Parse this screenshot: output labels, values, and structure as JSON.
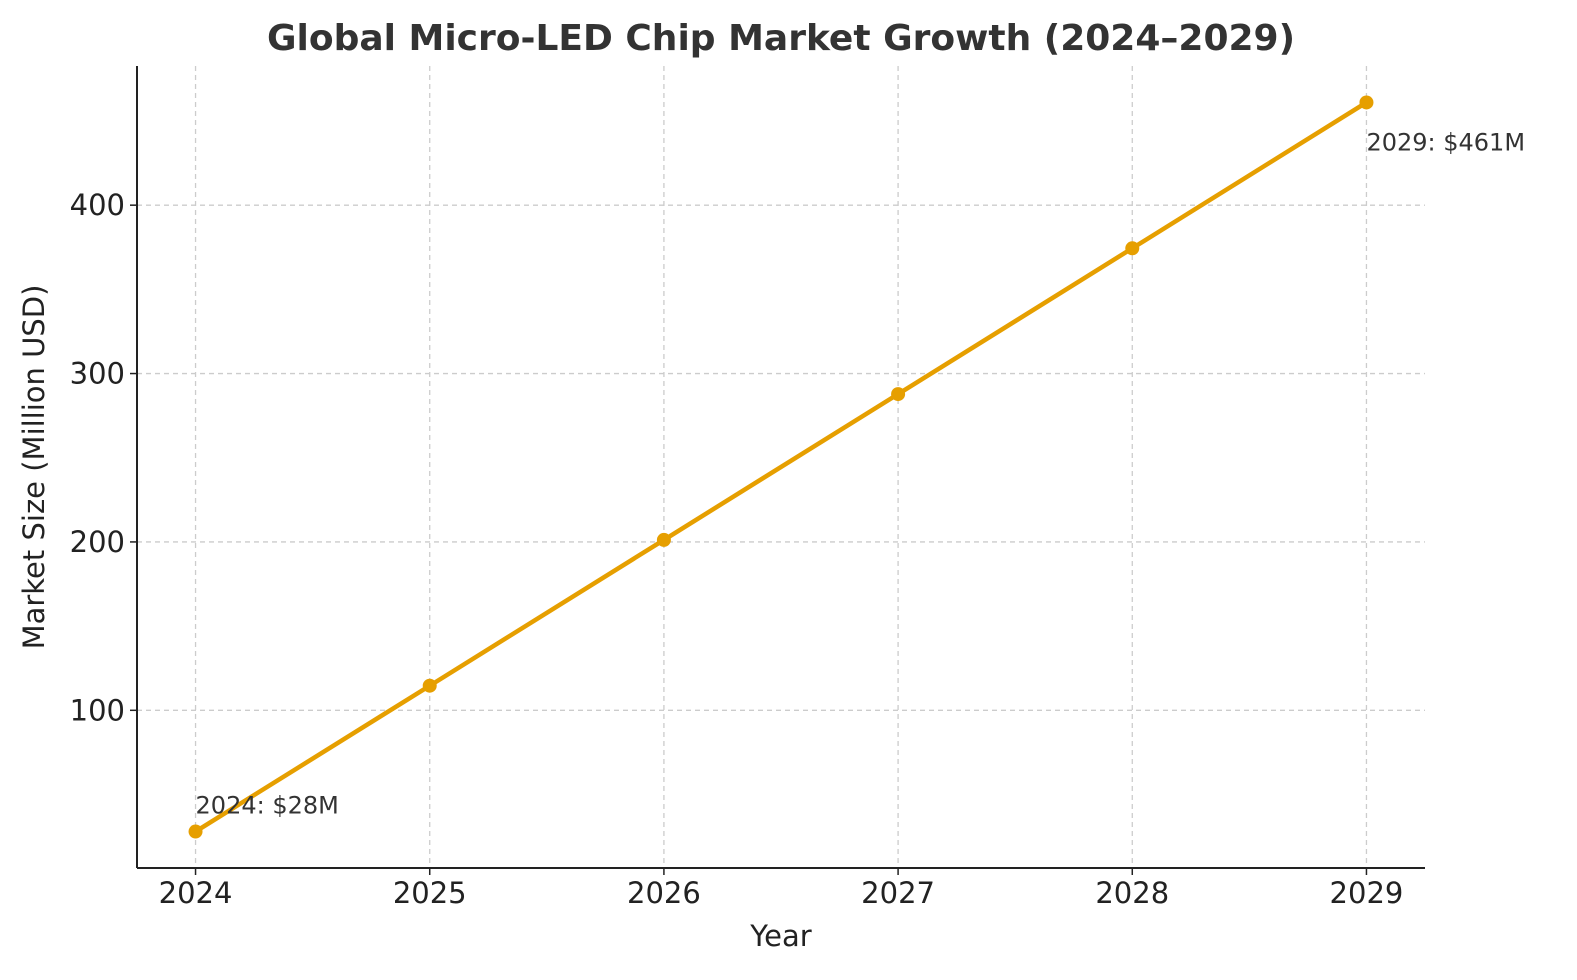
{
  "chart_data": {
    "type": "line",
    "title": "Global Micro-LED Chip Market Growth (2024–2029)",
    "xlabel": "Year",
    "ylabel": "Market Size (Million USD)",
    "x": [
      2024,
      2025,
      2026,
      2027,
      2028,
      2029
    ],
    "series": [
      {
        "values": [
          28,
          114.6,
          201.2,
          287.8,
          374.4,
          461
        ],
        "color": "#E69F00",
        "marker": "circle"
      }
    ],
    "xlim": [
      2023.75,
      2029.25
    ],
    "ylim": [
      6.35,
      482.65
    ],
    "xticks": [
      "2024",
      "2025",
      "2026",
      "2027",
      "2028",
      "2029"
    ],
    "yticks": [
      "100",
      "200",
      "300",
      "400"
    ],
    "grid": true,
    "annotations": [
      {
        "text": "2024: $28M",
        "x": 2024,
        "y": 28
      },
      {
        "text": "2029: $461M",
        "x": 2029,
        "y": 461
      }
    ]
  }
}
